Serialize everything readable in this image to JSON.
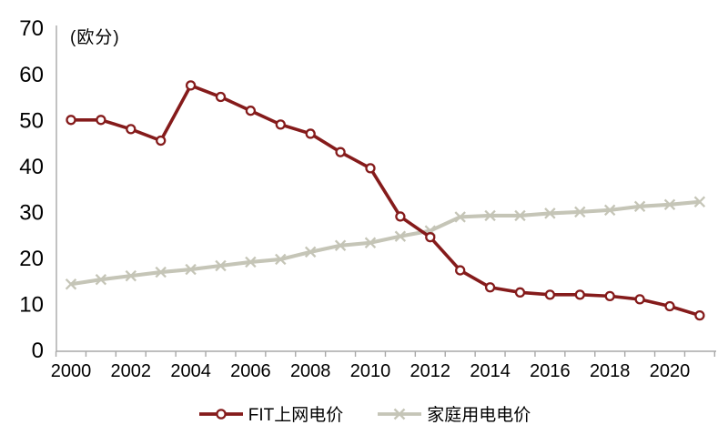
{
  "chart_data": {
    "type": "line",
    "unit_label": "(欧分)",
    "x": [
      2000,
      2001,
      2002,
      2003,
      2004,
      2005,
      2006,
      2007,
      2008,
      2009,
      2010,
      2011,
      2012,
      2013,
      2014,
      2015,
      2016,
      2017,
      2018,
      2019,
      2020,
      2021
    ],
    "xtick_labels": [
      "2000",
      "2002",
      "2004",
      "2006",
      "2008",
      "2010",
      "2012",
      "2014",
      "2016",
      "2018",
      "2020"
    ],
    "yticks": [
      0,
      10,
      20,
      30,
      40,
      50,
      60,
      70
    ],
    "ylim": [
      0,
      70
    ],
    "grid": false,
    "legend_position": "bottom",
    "background_color": "#FFFFFF",
    "axis_color": "#A8A8A8",
    "text_color": "#000000",
    "series": [
      {
        "name": "FIT上网电价",
        "color": "#851B1B",
        "marker": "circle",
        "values": [
          50,
          50,
          48,
          45.5,
          57.5,
          55,
          52,
          49,
          47,
          43,
          39.5,
          29,
          24.5,
          17.3,
          13.6,
          12.5,
          12,
          12,
          11.7,
          11,
          9.5,
          7.5
        ]
      },
      {
        "name": "家庭用电电价",
        "color": "#C5C5B7",
        "marker": "x",
        "values": [
          14.3,
          15.3,
          16.1,
          16.9,
          17.5,
          18.3,
          19.1,
          19.7,
          21.3,
          22.7,
          23.3,
          24.7,
          25.9,
          28.9,
          29.2,
          29.2,
          29.7,
          30,
          30.4,
          31.2,
          31.6,
          32.2
        ]
      }
    ]
  }
}
